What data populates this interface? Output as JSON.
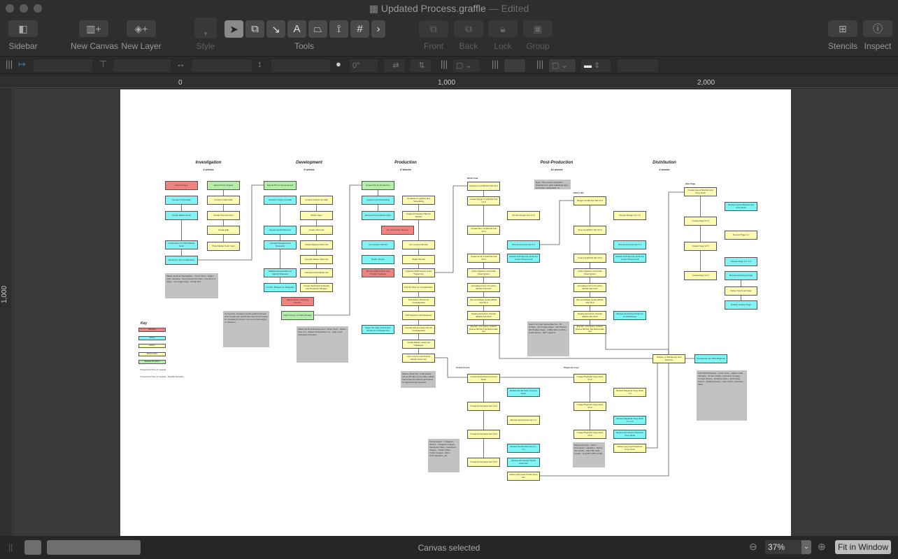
{
  "window": {
    "title": "Updated Process.graffle",
    "edited": "— Edited"
  },
  "toolbar": {
    "sidebar": "Sidebar",
    "new_canvas": "New Canvas",
    "new_layer": "New Layer",
    "style": "Style",
    "tools": "Tools",
    "front": "Front",
    "back": "Back",
    "lock": "Lock",
    "group": "Group",
    "stencils": "Stencils",
    "inspect": "Inspect"
  },
  "format_bar": {
    "rotation": "0°"
  },
  "ruler": {
    "h": [
      "0",
      "1,000",
      "2,000"
    ],
    "v": [
      "1,000"
    ]
  },
  "status": {
    "text": "Canvas selected",
    "zoom": "37%",
    "fit": "Fit in Window"
  },
  "colors": {
    "meeting": "#f08282",
    "action_client": "#80f4f4",
    "action": "#fbfbb2",
    "deliverable": "#fdfdb4",
    "budget": "#b4eeaa"
  },
  "phases": [
    {
      "name": "Investigation",
      "duration": "4 weeks"
    },
    {
      "name": "Development",
      "duration": "8 weeks"
    },
    {
      "name": "Production",
      "duration": "6 Weeks"
    },
    {
      "name": "Post-Production",
      "duration": "14 weeks"
    },
    {
      "name": "Distribution",
      "duration": "4 weeks"
    }
  ],
  "key": {
    "title": "Key",
    "items": [
      {
        "label": "Meeting",
        "kind": "meeting"
      },
      {
        "label": "Action",
        "kind": "action_client"
      },
      {
        "label": "Action",
        "kind": "action"
      },
      {
        "label": "Deliverable",
        "kind": "deliverable"
      },
      {
        "label": "Budget Decision",
        "kind": "budget"
      }
    ],
    "turnaround": "Turnaround Time (in weeks)",
    "turnaround_parallel": "Turnaround Time (in weeks) - Parallel Activities"
  },
  "section_labels": {
    "ep101_full": "EP101 Full",
    "ep101_30s": "EP101 30s",
    "web_page": "Web Page",
    "social": "Social Assets",
    "playbook": "Playbook Copy"
  },
  "nodes": [
    {
      "label": "Kickoff Project",
      "kind": "meeting"
    },
    {
      "label": "Raise PO for Project",
      "kind": "budget"
    },
    {
      "label": "Conduct Initial Calls",
      "kind": "action_client"
    },
    {
      "label": "Conduct Initial Calls",
      "kind": "action"
    },
    {
      "label": "Create Master Deck",
      "kind": "action_client"
    },
    {
      "label": "Create Overview Doc",
      "kind": "action"
    },
    {
      "label": "Create Edit",
      "kind": "action"
    },
    {
      "label": "Incorporate into PDA Master Deck",
      "kind": "action_client"
    },
    {
      "label": "Write Master Deck Copy",
      "kind": "action"
    },
    {
      "label": "Review for Tier Amplification",
      "kind": "action_client"
    },
    {
      "label": "Extend PO for Development",
      "kind": "budget"
    },
    {
      "label": "Conduct Follow Up Calls",
      "kind": "action_client"
    },
    {
      "label": "Conduct Follow Up Calls",
      "kind": "action"
    },
    {
      "label": "Refine Spec",
      "kind": "action"
    },
    {
      "label": "Departmental Planning",
      "kind": "action_client"
    },
    {
      "label": "Create Shot List",
      "kind": "action"
    },
    {
      "label": "Compile Departmental Requests",
      "kind": "action_client"
    },
    {
      "label": "Create Request Shot List",
      "kind": "action"
    },
    {
      "label": "Compile Master Shot List",
      "kind": "action"
    },
    {
      "label": "Validate Deliverables List Against Requests",
      "kind": "action_client"
    },
    {
      "label": "Compile Deliverables List",
      "kind": "action"
    },
    {
      "label": "Confirm Budgets for Requests",
      "kind": "action_client"
    },
    {
      "label": "Create Workback Schedule and Production Budget",
      "kind": "action"
    },
    {
      "label": "Master Deck / Planning Review",
      "kind": "meeting"
    },
    {
      "label": "Adjust Scope or Adjust Budget",
      "kind": "budget"
    },
    {
      "label": "Extend PO for Production",
      "kind": "budget"
    },
    {
      "label": "Logistics and Scheduling",
      "kind": "action_client"
    },
    {
      "label": "Production Logistics and Scheduling",
      "kind": "action"
    },
    {
      "label": "Review Pre-Production Plan",
      "kind": "action_client"
    },
    {
      "label": "Create Production Plan for Review",
      "kind": "action"
    },
    {
      "label": "Pre-Production Review",
      "kind": "meeting"
    },
    {
      "label": "On-Location Shoots",
      "kind": "action_client"
    },
    {
      "label": "On-Location Shoots",
      "kind": "action"
    },
    {
      "label": "Studio Shoots",
      "kind": "action_client"
    },
    {
      "label": "Studio Shoots",
      "kind": "action"
    },
    {
      "label": "Review RAW Assets and Provide Guidance",
      "kind": "meeting"
    },
    {
      "label": "Organize RAW Assets Order Transcripts",
      "kind": "action"
    },
    {
      "label": "Pull 4K Clips for Consideration",
      "kind": "action"
    },
    {
      "label": "Pull Hi-Res Photos for Consideration",
      "kind": "action"
    },
    {
      "label": "Pull Departmental Requests",
      "kind": "action"
    },
    {
      "label": "Select 4K Clips and Hi-Res Photos from Review Set",
      "kind": "action_client"
    },
    {
      "label": "Compile Review Asset Set for Consideration",
      "kind": "action"
    },
    {
      "label": "Create Master Asset List Catalogue",
      "kind": "action"
    },
    {
      "label": "Color Correct and Deliver Master Asset Set",
      "kind": "deliverable"
    },
    {
      "label": "Director's Cut EP101 Full V0.0",
      "kind": "action"
    },
    {
      "label": "Create Rough Cut EP101 Full V1.0",
      "kind": "action"
    },
    {
      "label": "Review Rough Cut V1.0",
      "kind": "action"
    },
    {
      "label": "Create Fine Cut EP101 Full V2.0",
      "kind": "action"
    },
    {
      "label": "Review Fine Cut 2.0, 2.1",
      "kind": "action_client"
    },
    {
      "label": "Create Final Cut EP101 Full V3.0",
      "kind": "action"
    },
    {
      "label": "Review and Approve Final Cut 3.0 for Picture Lock",
      "kind": "action_client"
    },
    {
      "label": "Order Captions and Audio Descriptions",
      "kind": "action"
    },
    {
      "label": "Complete Color Correction EP101 Full V4.0",
      "kind": "action"
    },
    {
      "label": "Mix and Master Audio EP101 Full V5.0",
      "kind": "action"
    },
    {
      "label": "Quality Assurance Checks EP101 Full V6.0",
      "kind": "action"
    },
    {
      "label": "Encode, Compress, Upload, Deliver EP101 Full Deliverable Set",
      "kind": "deliverable"
    },
    {
      "label": "Rough Cut EP101 30s V1.0",
      "kind": "action"
    },
    {
      "label": "Review Rough Cut 1.0",
      "kind": "action"
    },
    {
      "label": "Fine Cut EP101 30s V2.0",
      "kind": "action"
    },
    {
      "label": "Review Fine Cut 2.0, 2.1",
      "kind": "action_client"
    },
    {
      "label": "Final Cut EP101 30s V3.0",
      "kind": "action"
    },
    {
      "label": "Review and Approve Final Cut 3.0 for Picture Lock",
      "kind": "action_client"
    },
    {
      "label": "Order Captions and Audio Descriptions",
      "kind": "action"
    },
    {
      "label": "Complete Color Correction EP101 30s V4.0",
      "kind": "action"
    },
    {
      "label": "Mix and Master Audio EP101 30s V5.0",
      "kind": "action"
    },
    {
      "label": "Quality Assurance Checks EP101 30s V6.0",
      "kind": "action"
    },
    {
      "label": "Review and Accept Final Cut for Distribution",
      "kind": "action_client"
    },
    {
      "label": "Encode, Compress, Upload, Deliver EP101 30s Deliverable Set",
      "kind": "deliverable"
    },
    {
      "label": "Create Social Asset Concept Deck",
      "kind": "action"
    },
    {
      "label": "Review Social Asset Concept Deck",
      "kind": "action_client"
    },
    {
      "label": "Create Social Asset Set V1.0",
      "kind": "action"
    },
    {
      "label": "Review Social Asset Set 1.0",
      "kind": "action"
    },
    {
      "label": "Create Social Asset Set V2.0",
      "kind": "action"
    },
    {
      "label": "Review Social Asset Set 2.1, 2.2",
      "kind": "action_client"
    },
    {
      "label": "Create Social Asset Set V3.0",
      "kind": "action"
    },
    {
      "label": "Review and Accept Social Asset Set",
      "kind": "action_client"
    },
    {
      "label": "Deliver Approved Social Asset Set",
      "kind": "deliverable"
    },
    {
      "label": "Create Playbook Copy Deck V1.0",
      "kind": "action"
    },
    {
      "label": "Review Playbook Copy Deck 1.0",
      "kind": "action"
    },
    {
      "label": "Create Playbook Copy Deck V2.0",
      "kind": "action"
    },
    {
      "label": "Review Playbook Copy Deck 2.1, 2.2",
      "kind": "action_client"
    },
    {
      "label": "Create Playbook Copy Deck V3.0",
      "kind": "action"
    },
    {
      "label": "Review and Accept Playbook Copy Deck",
      "kind": "action_client"
    },
    {
      "label": "Deliver Approved Playbook Copy Deck",
      "kind": "deliverable"
    },
    {
      "label": "Create Layout Mockup and Copy Deck",
      "kind": "action"
    },
    {
      "label": "Review Layout Mockup and Copy Deck",
      "kind": "action_client"
    },
    {
      "label": "Create Page V1.0",
      "kind": "action"
    },
    {
      "label": "Review Page 1.0",
      "kind": "action"
    },
    {
      "label": "Create Page V2.0",
      "kind": "action"
    },
    {
      "label": "Review Page 2.1, 2.2",
      "kind": "action_client"
    },
    {
      "label": "Create Page V3.0",
      "kind": "action"
    },
    {
      "label": "Review and Accept Page",
      "kind": "action_client"
    },
    {
      "label": "Deliver Approved page",
      "kind": "deliverable"
    },
    {
      "label": "Publish Intuitive Page",
      "kind": "action_client"
    },
    {
      "label": "Deliver on Sharepoint and Hardrive",
      "kind": "deliverable"
    },
    {
      "label": "Incorporate into PDA Playbook",
      "kind": "action_client"
    }
  ],
  "notes": [
    {
      "text": "Master Deck at Investigation - Cover Story - Higher order narrative - Screenshots from Edit - Overview (1 page) - One Page Copy - Rough Edit"
    },
    {
      "text": "Community managers working with business units to plan and coordinate how stories would be integrated in future and current campaigns or initiatives"
    },
    {
      "text": "Master Deck at Development - Cover Story - Master Shot List - Master Deliverables List - High Level Workback Schedule"
    },
    {
      "text": "Master Asset Set - Final assets will be 4K clips, hi-res stills, edited transcripts and assets generated for departmental requests"
    },
    {
      "text": "Note: This process should be duplicated for each additional post-production deliverable, i.e. additional short edits, episodes, etc."
    },
    {
      "text": "Specs for Final Deliverable Set - 4K ProRes - 4K ProRes Clean - HD ProRes - HD ProRes Clean - 1080p Web (H.264) - Audio Stems - SRT Captions"
    },
    {
      "text": "Social Assets: - Instagram Stories - Instagram Images - Facebook Video - Facebook Images - Twitter Video - Twitter Images - GIFs - Cinemagraphs, etc."
    },
    {
      "text": "Playbook Copy: - Name - Description - Headline - Byline (50 words) - Short Bio (100 words) - Long Bio (150 words)"
    },
    {
      "text": "Final PDA Playbook - Cover Story - Higher order narrative - Screen Grabs - Overview (1 page) - Contact Stories - Endorsements - Technology Stories - Related Assets - Copy Deck - Activation Ideas"
    }
  ]
}
